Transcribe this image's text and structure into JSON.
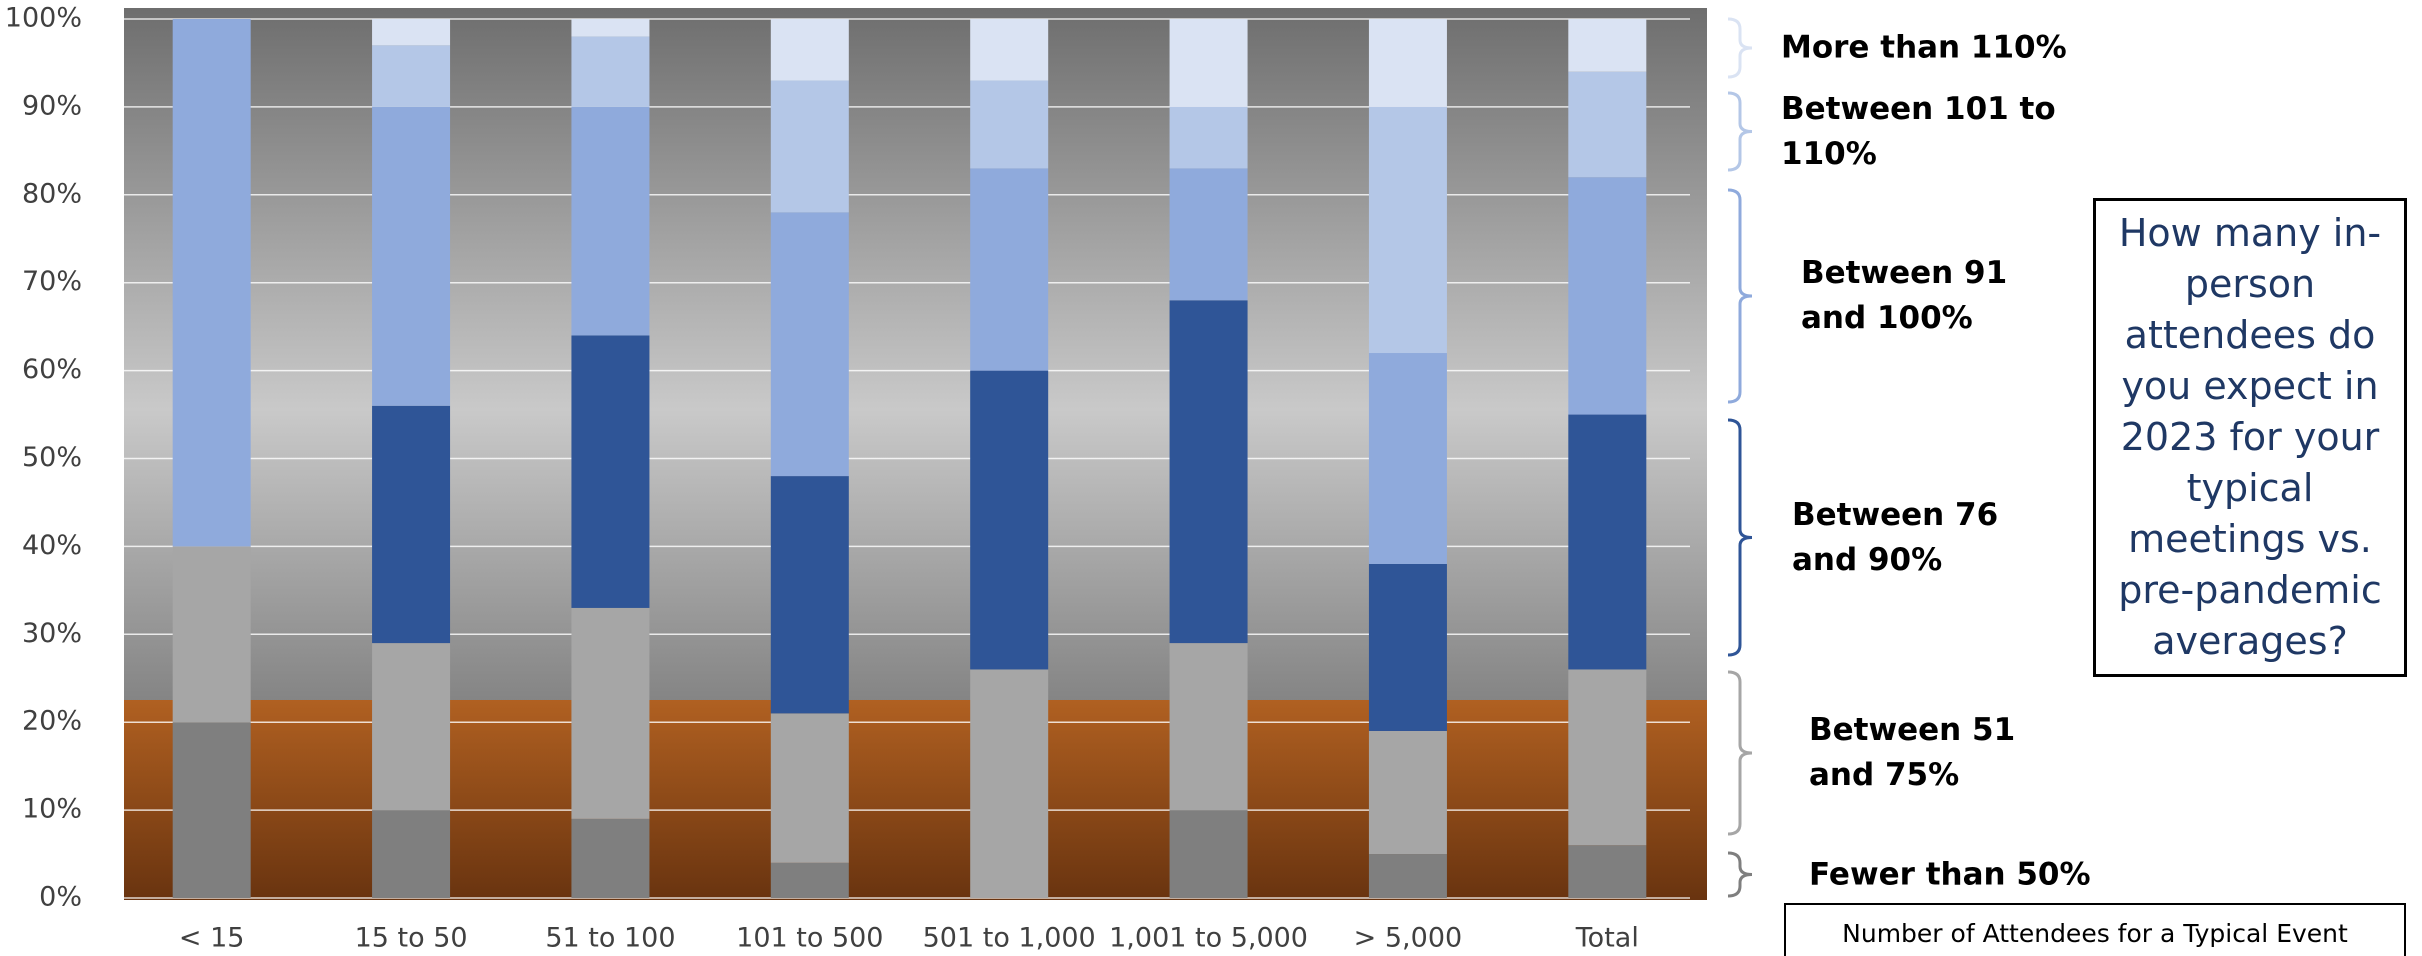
{
  "chart_data": {
    "type": "stacked_bar",
    "annotation": "How many in-person attendees do you expect in 2023 for your typical meetings vs. pre-pandemic averages?",
    "xlabel": "Number of Attendees for a Typical Event",
    "categories": [
      "< 15",
      "15 to 50",
      "51 to 100",
      "101 to 500",
      "501 to 1,000",
      "1,001 to 5,000",
      "> 5,000",
      "Total"
    ],
    "series": [
      {
        "name": "Fewer than 50%",
        "color": "#7f7f7f",
        "values": [
          20,
          10,
          9,
          4,
          0,
          10,
          5,
          6
        ]
      },
      {
        "name": "Between 51 and 75%",
        "color": "#a6a6a6",
        "values": [
          20,
          19,
          24,
          17,
          26,
          19,
          14,
          20
        ]
      },
      {
        "name": "Between 76 and 90%",
        "color": "#2f5597",
        "values": [
          0,
          27,
          31,
          27,
          34,
          39,
          19,
          29
        ]
      },
      {
        "name": "Between 91 and 100%",
        "color": "#8faadc",
        "values": [
          60,
          34,
          26,
          30,
          23,
          15,
          24,
          27
        ]
      },
      {
        "name": "Between 101 to 110%",
        "color": "#b4c7e7",
        "values": [
          0,
          7,
          8,
          15,
          10,
          7,
          28,
          12
        ]
      },
      {
        "name": "More than 110%",
        "color": "#dae3f3",
        "values": [
          0,
          3,
          2,
          7,
          7,
          10,
          10,
          6
        ]
      }
    ],
    "ylim": [
      0,
      100
    ],
    "yticks": [
      {
        "value": 0,
        "label": "0%"
      },
      {
        "value": 10,
        "label": "10%"
      },
      {
        "value": 20,
        "label": "20%"
      },
      {
        "value": 30,
        "label": "30%"
      },
      {
        "value": 40,
        "label": "40%"
      },
      {
        "value": 50,
        "label": "50%"
      },
      {
        "value": 60,
        "label": "60%"
      },
      {
        "value": 70,
        "label": "70%"
      },
      {
        "value": 80,
        "label": "80%"
      },
      {
        "value": 90,
        "label": "90%"
      },
      {
        "value": 100,
        "label": "100%"
      }
    ],
    "grid": true
  }
}
